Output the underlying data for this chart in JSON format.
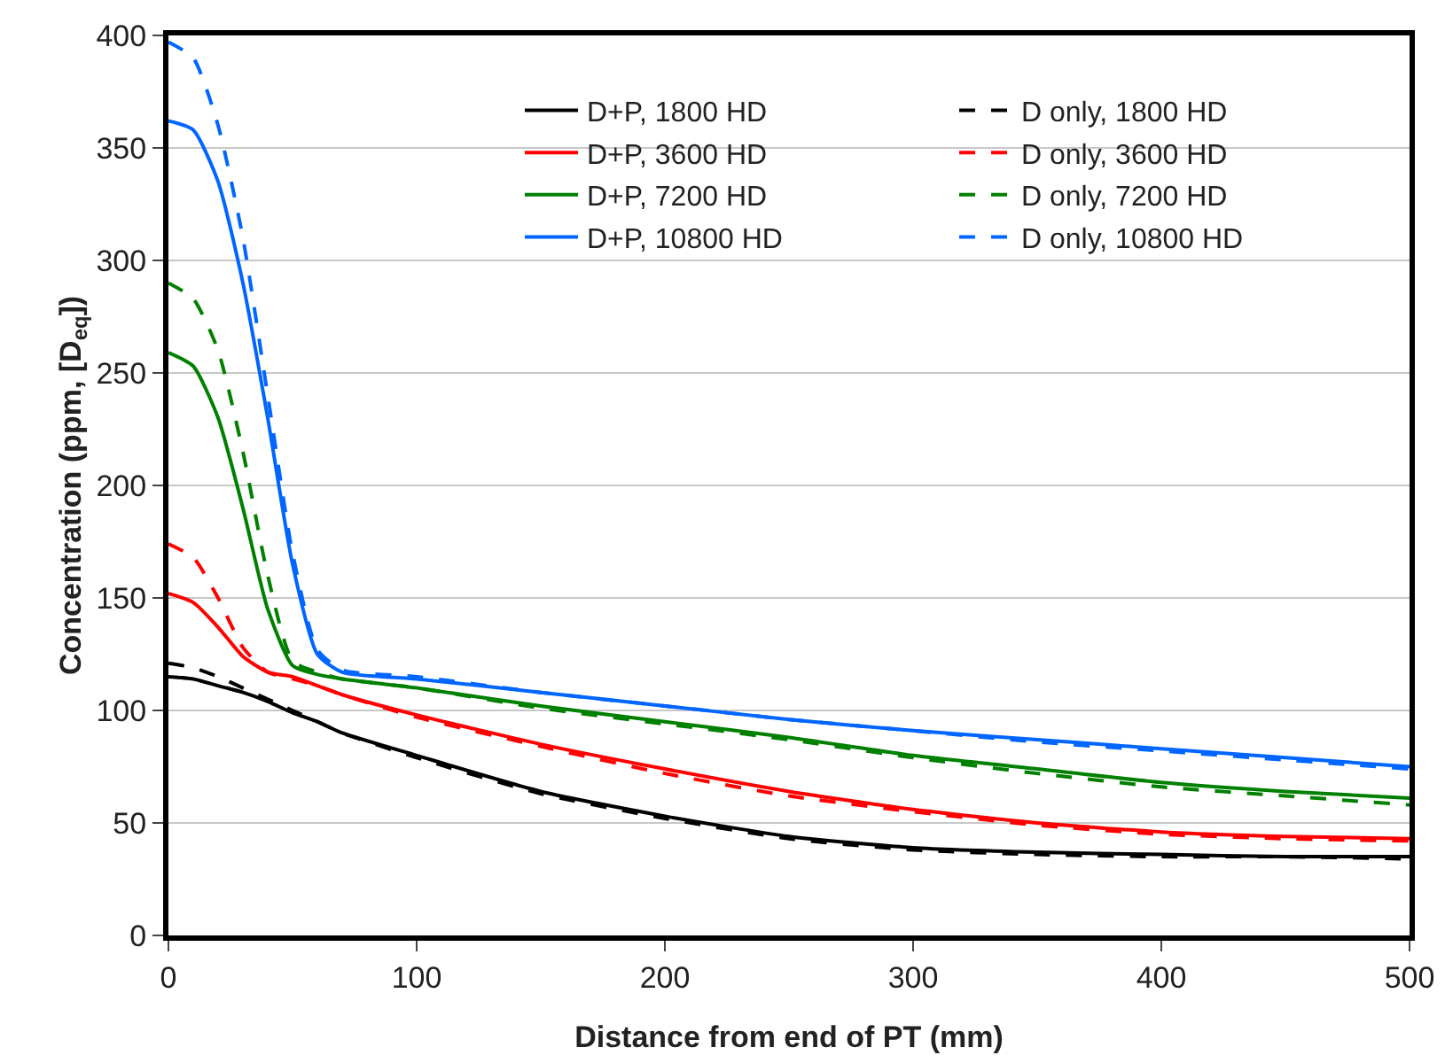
{
  "chart_data": {
    "type": "line",
    "xlabel": "Distance from end of PT (mm)",
    "ylabel": "Concentration (ppm, [D$_{eq}$])",
    "x": [
      0,
      10,
      20,
      30,
      40,
      50,
      60,
      70,
      100,
      150,
      200,
      250,
      300,
      350,
      400,
      450,
      500
    ],
    "xlim": [
      0,
      500
    ],
    "xticks": [
      0,
      100,
      200,
      300,
      400,
      500
    ],
    "ylim": [
      0,
      400
    ],
    "yticks": [
      0,
      50,
      100,
      150,
      200,
      250,
      300,
      350,
      400
    ],
    "grid": "y",
    "legend": "top right",
    "marker": "none",
    "series": [
      {
        "name": "D+P, 1800 HD",
        "color": "#000000",
        "line_style": "solid",
        "values": [
          115,
          114,
          111,
          108,
          104,
          99,
          95,
          90,
          80,
          64,
          53,
          44,
          39,
          37,
          36,
          35,
          35
        ]
      },
      {
        "name": "D only, 1800 HD",
        "color": "#000000",
        "line_style": "dashed",
        "values": [
          121,
          119,
          115,
          110,
          105,
          100,
          95,
          90,
          79,
          63,
          52,
          43,
          38,
          36,
          35,
          35,
          34
        ]
      },
      {
        "name": "D+P, 3600 HD",
        "color": "#ff0000",
        "line_style": "solid",
        "values": [
          152,
          148,
          137,
          124,
          117,
          115,
          111,
          107,
          98,
          85,
          74,
          64,
          56,
          50,
          46,
          44,
          43
        ]
      },
      {
        "name": "D only, 3600 HD",
        "color": "#ff0000",
        "line_style": "dashed",
        "values": [
          174,
          168,
          150,
          128,
          117,
          114,
          111,
          107,
          97,
          84,
          72,
          62,
          55,
          49,
          45,
          43,
          42
        ]
      },
      {
        "name": "D+P, 7200 HD",
        "color": "#008000",
        "line_style": "solid",
        "values": [
          259,
          253,
          230,
          190,
          145,
          120,
          116,
          114,
          110,
          102,
          95,
          88,
          80,
          74,
          68,
          64,
          61
        ]
      },
      {
        "name": "D only, 7200 HD",
        "color": "#008000",
        "line_style": "dashed",
        "values": [
          290,
          283,
          260,
          215,
          160,
          122,
          117,
          114,
          110,
          101,
          94,
          87,
          79,
          72,
          66,
          62,
          58
        ]
      },
      {
        "name": "D+P, 10800 HD",
        "color": "#0066ff",
        "line_style": "solid",
        "values": [
          362,
          358,
          335,
          290,
          230,
          165,
          125,
          117,
          114,
          108,
          102,
          96,
          91,
          87,
          83,
          79,
          75
        ]
      },
      {
        "name": "D only, 10800 HD",
        "color": "#0066ff",
        "line_style": "dashed",
        "values": [
          397,
          390,
          360,
          310,
          240,
          170,
          127,
          118,
          115,
          108,
          102,
          96,
          91,
          86,
          82,
          78,
          74
        ]
      }
    ]
  }
}
